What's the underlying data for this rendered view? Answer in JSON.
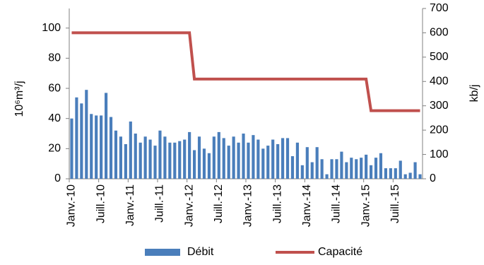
{
  "chart_data": {
    "type": "bar",
    "categories": [
      "Janv.-10",
      null,
      null,
      null,
      null,
      null,
      "Juill.-10",
      null,
      null,
      null,
      null,
      null,
      "Janv.-11",
      null,
      null,
      null,
      null,
      null,
      "Juill.-11",
      null,
      null,
      null,
      null,
      null,
      "Janv.-12",
      null,
      null,
      null,
      null,
      null,
      "Juill.-12",
      null,
      null,
      null,
      null,
      null,
      "Janv.-13",
      null,
      null,
      null,
      null,
      null,
      "Juill.-13",
      null,
      null,
      null,
      null,
      null,
      "Janv.-14",
      null,
      null,
      null,
      null,
      null,
      "Juill.-14",
      null,
      null,
      null,
      null,
      null,
      "Janv.-15",
      null,
      null,
      null,
      null,
      null,
      "Juill.-15",
      null,
      null,
      null,
      null,
      null
    ],
    "series": [
      {
        "name": "Débit",
        "type": "bar",
        "color": "#4a7ebb",
        "values": [
          40,
          54,
          50,
          59,
          43,
          42,
          42,
          57,
          41,
          32,
          28,
          23,
          38,
          30,
          24,
          28,
          26,
          22,
          32,
          28,
          24,
          24,
          25,
          26,
          31,
          19,
          28,
          20,
          17,
          28,
          31,
          27,
          22,
          28,
          24,
          30,
          24,
          29,
          26,
          20,
          22,
          26,
          23,
          27,
          27,
          15,
          24,
          9,
          21,
          11,
          21,
          13,
          3,
          13,
          13,
          18,
          11,
          14,
          13,
          14,
          16,
          9,
          14,
          17,
          7,
          7,
          7,
          12,
          3,
          4,
          11,
          3
        ]
      },
      {
        "name": "Capacité",
        "type": "line",
        "axis": "y2",
        "color": "#c0504d",
        "values": [
          600,
          600,
          600,
          600,
          600,
          600,
          600,
          600,
          600,
          600,
          600,
          600,
          600,
          600,
          600,
          600,
          600,
          600,
          600,
          600,
          600,
          600,
          600,
          600,
          600,
          410,
          410,
          410,
          410,
          410,
          410,
          410,
          410,
          410,
          410,
          410,
          410,
          410,
          410,
          410,
          410,
          410,
          410,
          410,
          410,
          410,
          410,
          410,
          410,
          410,
          410,
          410,
          410,
          410,
          410,
          410,
          410,
          410,
          410,
          410,
          410,
          280,
          280,
          280,
          280,
          280,
          280,
          280,
          280,
          280,
          280,
          280
        ]
      }
    ],
    "ylabel": "10⁶m³/j",
    "y2label": "kb/j",
    "ylim": [
      0,
      113
    ],
    "yticks": [
      0,
      20,
      40,
      60,
      80,
      100
    ],
    "y2lim": [
      0,
      700
    ],
    "y2ticks": [
      0,
      100,
      200,
      300,
      400,
      500,
      600,
      700
    ],
    "grid": false,
    "legend": "bottom"
  }
}
